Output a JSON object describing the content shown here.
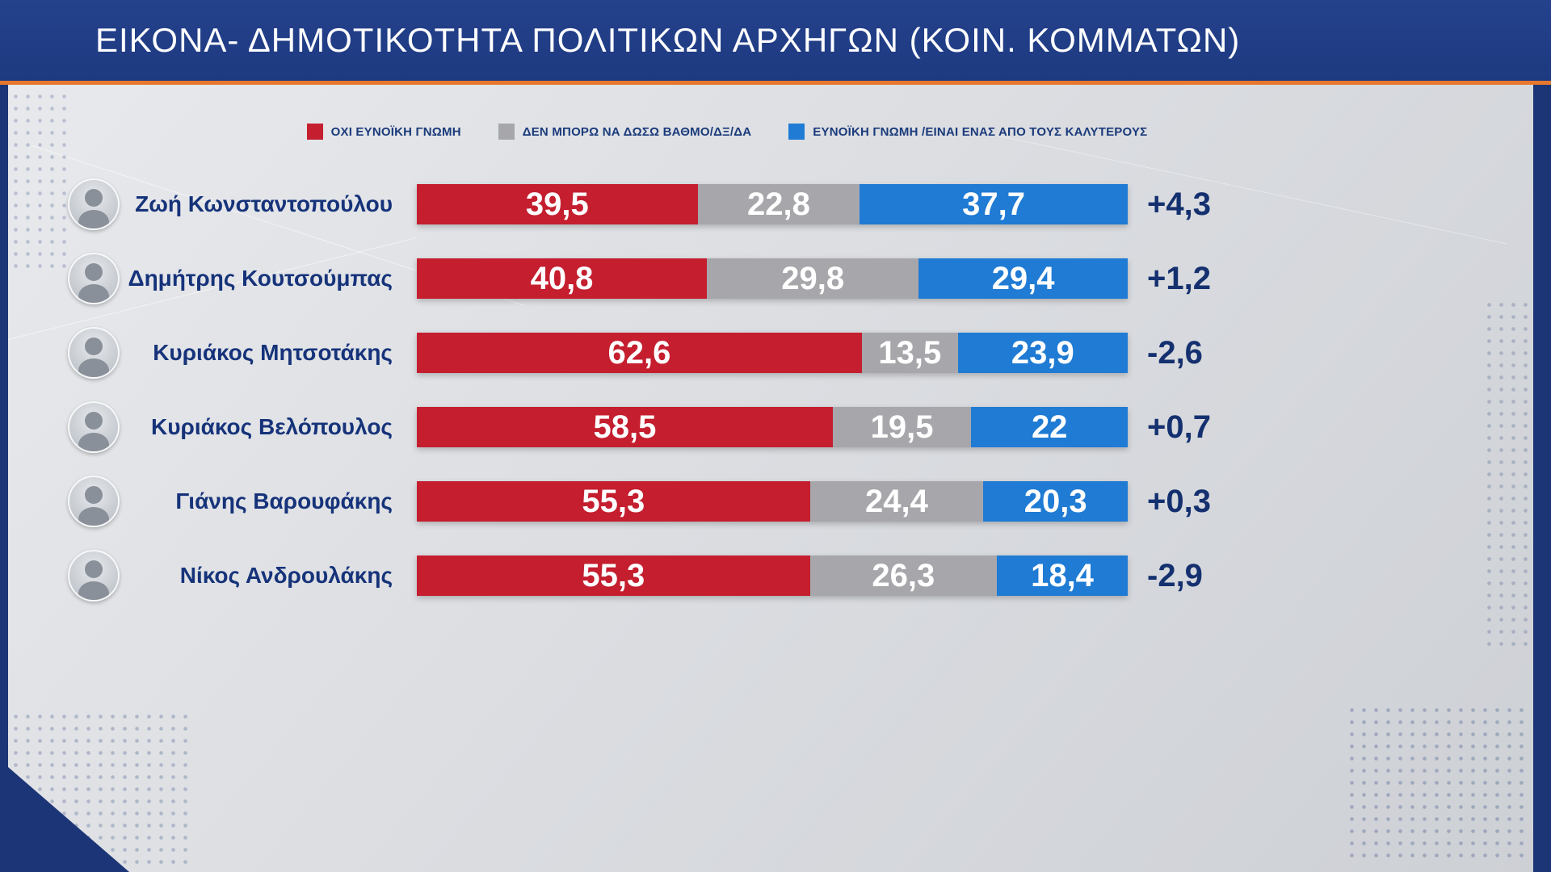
{
  "header": {
    "title": "ΕΙΚΟΝΑ- ΔΗΜΟΤΙΚΟΤΗΤΑ ΠΟΛΙΤΙΚΩΝ ΑΡΧΗΓΩΝ (ΚΟΙΝ. ΚΟΜΜΑΤΩΝ)"
  },
  "legend": [
    {
      "label": "ΟΧΙ ΕΥΝΟΪΚΗ ΓΝΩΜΗ",
      "color": "#c41e2f"
    },
    {
      "label": "ΔΕΝ ΜΠΟΡΩ ΝΑ ΔΩΣΩ ΒΑΘΜΟ/ΔΞ/ΔΑ",
      "color": "#a7a7ab"
    },
    {
      "label": "ΕΥΝΟΪΚΗ ΓΝΩΜΗ /ΕΙΝΑΙ ΕΝΑΣ ΑΠΟ ΤΟΥΣ ΚΑΛΥΤΕΡΟΥΣ",
      "color": "#1f7bd4"
    }
  ],
  "chart_data": {
    "type": "bar",
    "orientation": "horizontal-stacked",
    "title": "ΕΙΚΟΝΑ- ΔΗΜΟΤΙΚΟΤΗΤΑ ΠΟΛΙΤΙΚΩΝ ΑΡΧΗΓΩΝ (ΚΟΙΝ. ΚΟΜΜΑΤΩΝ)",
    "xlim": [
      0,
      100
    ],
    "categories": [
      "Ζωή Κωνσταντοπούλου",
      "Δημήτρης Κουτσούμπας",
      "Κυριάκος Μητσοτάκης",
      "Κυριάκος Βελόπουλος",
      "Γιάνης Βαρουφάκης",
      "Νίκος Ανδρουλάκης"
    ],
    "series": [
      {
        "name": "ΟΧΙ ΕΥΝΟΪΚΗ ΓΝΩΜΗ",
        "color": "#c41e2f",
        "values": [
          39.5,
          40.8,
          62.6,
          58.5,
          55.3,
          55.3
        ],
        "labels": [
          "39,5",
          "40,8",
          "62,6",
          "58,5",
          "55,3",
          "55,3"
        ]
      },
      {
        "name": "ΔΕΝ ΜΠΟΡΩ ΝΑ ΔΩΣΩ ΒΑΘΜΟ/ΔΞ/ΔΑ",
        "color": "#a7a7ab",
        "values": [
          22.8,
          29.8,
          13.5,
          19.5,
          24.4,
          26.3
        ],
        "labels": [
          "22,8",
          "29,8",
          "13,5",
          "19,5",
          "24,4",
          "26,3"
        ]
      },
      {
        "name": "ΕΥΝΟΪΚΗ ΓΝΩΜΗ /ΕΙΝΑΙ ΕΝΑΣ ΑΠΟ ΤΟΥΣ ΚΑΛΥΤΕΡΟΥΣ",
        "color": "#1f7bd4",
        "values": [
          37.7,
          29.4,
          23.9,
          22,
          20.3,
          18.4
        ],
        "labels": [
          "37,7",
          "29,4",
          "23,9",
          "22",
          "20,3",
          "18,4"
        ]
      }
    ],
    "changes": [
      "+4,3",
      "+1,2",
      "-2,6",
      "+0,7",
      "+0,3",
      "-2,9"
    ],
    "legend_position": "top"
  }
}
